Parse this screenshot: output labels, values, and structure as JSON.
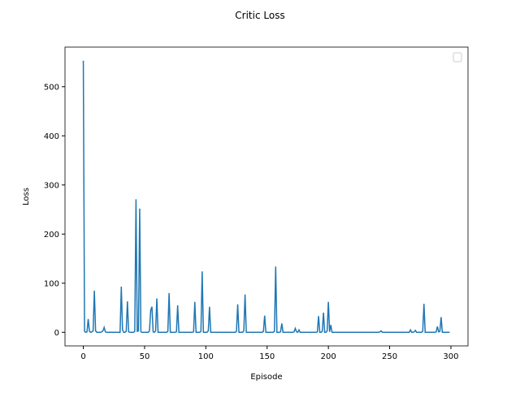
{
  "chart_data": {
    "type": "line",
    "title": "Critic Loss",
    "x_label": "Episode",
    "y_label": "Loss",
    "series": [
      {
        "color": "#1f77b4",
        "values": [
          553,
          2,
          0,
          1,
          27,
          2,
          0,
          1,
          3,
          85,
          3,
          0,
          0,
          0,
          0,
          1,
          3,
          10,
          1,
          0,
          0,
          0,
          0,
          0,
          0,
          0,
          0,
          0,
          0,
          0,
          0,
          93,
          5,
          0,
          0,
          2,
          63,
          1,
          0,
          0,
          0,
          0,
          2,
          271,
          2,
          3,
          252,
          1,
          0,
          0,
          0,
          0,
          0,
          0,
          3,
          45,
          52,
          1,
          0,
          3,
          69,
          0,
          0,
          0,
          0,
          0,
          0,
          0,
          0,
          2,
          80,
          0,
          0,
          0,
          0,
          0,
          1,
          55,
          0,
          0,
          0,
          0,
          0,
          0,
          0,
          0,
          0,
          0,
          0,
          0,
          1,
          62,
          0,
          0,
          0,
          0,
          2,
          124,
          0,
          0,
          0,
          0,
          3,
          52,
          0,
          0,
          0,
          0,
          0,
          0,
          0,
          0,
          0,
          0,
          0,
          0,
          0,
          0,
          0,
          0,
          0,
          0,
          0,
          0,
          0,
          2,
          57,
          0,
          0,
          0,
          0,
          3,
          77,
          0,
          0,
          0,
          0,
          0,
          0,
          0,
          0,
          0,
          0,
          0,
          0,
          0,
          0,
          2,
          34,
          0,
          0,
          0,
          0,
          0,
          0,
          0,
          2,
          134,
          0,
          0,
          0,
          1,
          18,
          0,
          0,
          0,
          0,
          0,
          0,
          0,
          0,
          0,
          1,
          8,
          1,
          0,
          5,
          0,
          0,
          0,
          0,
          0,
          0,
          0,
          0,
          0,
          0,
          0,
          0,
          0,
          0,
          1,
          33,
          0,
          0,
          2,
          40,
          0,
          0,
          3,
          62,
          1,
          15,
          0,
          0,
          0,
          0,
          0,
          0,
          0,
          0,
          0,
          0,
          0,
          0,
          0,
          0,
          0,
          0,
          0,
          0,
          0,
          0,
          0,
          0,
          0,
          0,
          0,
          0,
          0,
          0,
          0,
          0,
          0,
          0,
          0,
          0,
          0,
          0,
          0,
          0,
          0,
          1,
          3,
          0,
          0,
          0,
          0,
          0,
          0,
          0,
          0,
          0,
          0,
          0,
          0,
          0,
          0,
          0,
          0,
          0,
          0,
          0,
          0,
          0,
          0,
          0,
          5,
          0,
          0,
          1,
          4,
          0,
          0,
          0,
          0,
          0,
          2,
          58,
          0,
          0,
          0,
          0,
          0,
          0,
          0,
          0,
          0,
          1,
          12,
          1,
          2,
          31,
          0,
          0,
          0,
          0,
          0,
          0,
          0
        ]
      }
    ],
    "xlim": [
      -14.95,
      313.95
    ],
    "xticks": [
      0,
      50,
      100,
      150,
      200,
      250,
      300
    ],
    "ylim": [
      -27.65,
      580.65
    ],
    "yticks": [
      0,
      100,
      200,
      300,
      400,
      500
    ],
    "legend": "upper right"
  }
}
